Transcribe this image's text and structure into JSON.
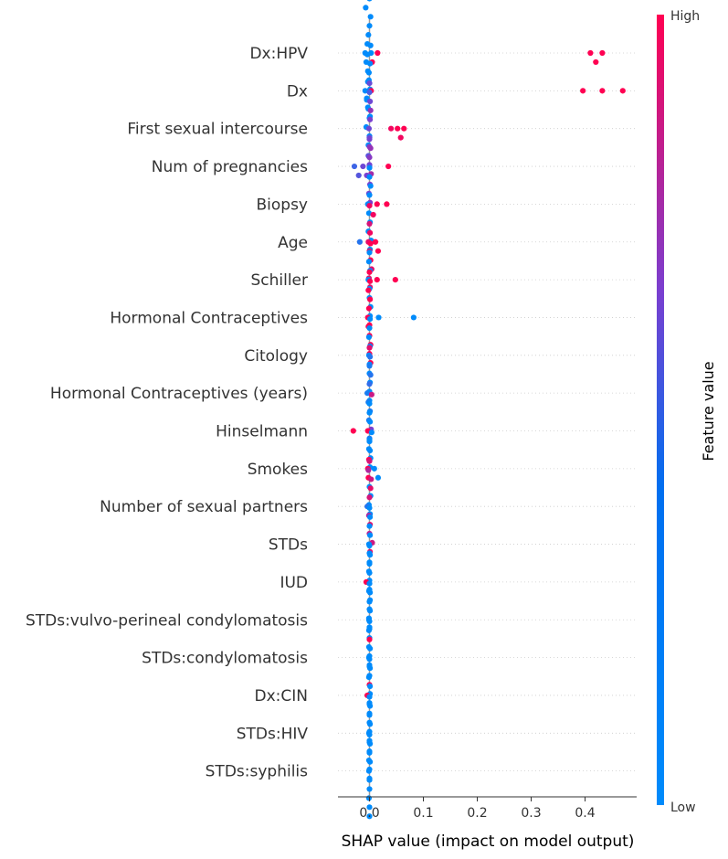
{
  "chart_data": {
    "type": "scatter",
    "subtype": "shap-beeswarm-summary",
    "title": "",
    "xlabel": "SHAP value (impact on model output)",
    "xlim": [
      -0.05,
      0.46
    ],
    "x_ticks": [
      0.0,
      0.1,
      0.2,
      0.3,
      0.4
    ],
    "x_tick_labels": [
      "0.0",
      "0.1",
      "0.2",
      "0.3",
      "0.4"
    ],
    "zero_line": true,
    "row_gridlines": "dotted",
    "colorbar": {
      "title": "Feature value",
      "high_label": "High",
      "low_label": "Low",
      "high_color": "#ff0052",
      "low_color": "#008bfb",
      "placement": "right"
    },
    "features": [
      {
        "name": "Dx:HPV",
        "points": [
          [
            -0.008,
            0.0
          ],
          [
            -0.006,
            0.0
          ],
          [
            -0.004,
            0.0
          ],
          [
            -0.003,
            0.0
          ],
          [
            -0.002,
            0.0
          ],
          [
            -0.001,
            0.0
          ],
          [
            0.0,
            0.0
          ],
          [
            0.001,
            0.0
          ],
          [
            0.002,
            0.0
          ],
          [
            -0.005,
            0.0
          ],
          [
            -0.007,
            0.0
          ],
          [
            -0.003,
            0.0
          ],
          [
            0.0,
            0.0
          ],
          [
            0.001,
            0.0
          ],
          [
            -0.002,
            0.0
          ],
          [
            0.003,
            0.0
          ],
          [
            0.005,
            1.0
          ],
          [
            0.015,
            1.0
          ],
          [
            0.41,
            1.0
          ],
          [
            0.42,
            1.0
          ],
          [
            0.432,
            1.0
          ]
        ]
      },
      {
        "name": "Dx",
        "points": [
          [
            -0.008,
            0.0
          ],
          [
            -0.005,
            0.0
          ],
          [
            -0.003,
            0.0
          ],
          [
            -0.002,
            0.0
          ],
          [
            -0.001,
            0.0
          ],
          [
            0.0,
            0.0
          ],
          [
            0.001,
            0.0
          ],
          [
            -0.006,
            0.0
          ],
          [
            -0.004,
            0.0
          ],
          [
            0.0,
            0.0
          ],
          [
            0.002,
            0.0
          ],
          [
            -0.002,
            0.0
          ],
          [
            0.003,
            1.0
          ],
          [
            0.396,
            1.0
          ],
          [
            0.432,
            1.0
          ],
          [
            0.47,
            1.0
          ]
        ]
      },
      {
        "name": "First sexual intercourse",
        "points": [
          [
            -0.001,
            0.45
          ],
          [
            0.0,
            0.4
          ],
          [
            0.001,
            0.5
          ],
          [
            0.0,
            0.55
          ],
          [
            0.002,
            0.6
          ],
          [
            -0.002,
            0.35
          ],
          [
            0.001,
            0.45
          ],
          [
            0.0,
            0.5
          ],
          [
            0.0,
            0.3
          ],
          [
            0.003,
            0.65
          ],
          [
            0.0,
            0.42
          ],
          [
            0.04,
            0.95
          ],
          [
            0.052,
            1.0
          ],
          [
            0.058,
            0.95
          ],
          [
            0.064,
            1.0
          ]
        ]
      },
      {
        "name": "Num of pregnancies",
        "points": [
          [
            -0.028,
            0.25
          ],
          [
            -0.02,
            0.35
          ],
          [
            -0.012,
            0.45
          ],
          [
            -0.005,
            0.5
          ],
          [
            0.0,
            0.4
          ],
          [
            0.0,
            0.55
          ],
          [
            0.001,
            0.5
          ],
          [
            0.002,
            0.6
          ],
          [
            -0.001,
            0.45
          ],
          [
            0.0,
            0.48
          ],
          [
            0.001,
            0.52
          ],
          [
            0.035,
            1.0
          ]
        ]
      },
      {
        "name": "Biopsy",
        "points": [
          [
            -0.003,
            0.0
          ],
          [
            -0.001,
            0.0
          ],
          [
            0.0,
            0.0
          ],
          [
            0.001,
            0.0
          ],
          [
            0.002,
            0.0
          ],
          [
            -0.002,
            0.0
          ],
          [
            0.0,
            0.0
          ],
          [
            0.003,
            0.0
          ],
          [
            0.0,
            0.0
          ],
          [
            0.001,
            0.0
          ],
          [
            0.014,
            1.0
          ],
          [
            0.032,
            1.0
          ]
        ]
      },
      {
        "name": "Age",
        "points": [
          [
            -0.018,
            0.15
          ],
          [
            -0.002,
            0.9
          ],
          [
            0.0,
            0.9
          ],
          [
            0.001,
            0.95
          ],
          [
            0.002,
            1.0
          ],
          [
            0.0,
            0.85
          ],
          [
            0.004,
            0.9
          ],
          [
            0.007,
            0.95
          ],
          [
            0.011,
            1.0
          ],
          [
            0.016,
            1.0
          ],
          [
            -0.001,
            0.9
          ],
          [
            0.0,
            0.95
          ],
          [
            0.001,
            0.9
          ]
        ]
      },
      {
        "name": "Schiller",
        "points": [
          [
            -0.002,
            0.0
          ],
          [
            0.0,
            0.0
          ],
          [
            0.001,
            0.0
          ],
          [
            0.0,
            0.0
          ],
          [
            -0.001,
            0.0
          ],
          [
            0.002,
            0.0
          ],
          [
            0.0,
            0.0
          ],
          [
            0.001,
            0.0
          ],
          [
            0.002,
            1.0
          ],
          [
            0.0,
            1.0
          ],
          [
            0.014,
            1.0
          ],
          [
            0.048,
            1.0
          ]
        ]
      },
      {
        "name": "Hormonal Contraceptives",
        "points": [
          [
            -0.003,
            1.0
          ],
          [
            -0.002,
            1.0
          ],
          [
            -0.001,
            1.0
          ],
          [
            0.0,
            1.0
          ],
          [
            0.001,
            1.0
          ],
          [
            0.002,
            1.0
          ],
          [
            -0.002,
            1.0
          ],
          [
            0.0,
            1.0
          ],
          [
            0.001,
            1.0
          ],
          [
            0.002,
            1.0
          ],
          [
            0.0,
            1.0
          ],
          [
            0.017,
            0.0
          ],
          [
            0.082,
            0.0
          ]
        ]
      },
      {
        "name": "Citology",
        "points": [
          [
            -0.001,
            0.0
          ],
          [
            0.0,
            0.0
          ],
          [
            0.001,
            0.0
          ],
          [
            0.0,
            0.0
          ],
          [
            -0.001,
            0.0
          ],
          [
            0.001,
            0.0
          ],
          [
            0.0,
            0.0
          ],
          [
            0.0,
            0.0
          ],
          [
            0.001,
            0.0
          ],
          [
            0.0,
            0.0
          ]
        ]
      },
      {
        "name": "Hormonal Contraceptives (years)",
        "points": [
          [
            -0.004,
            0.1
          ],
          [
            -0.002,
            0.1
          ],
          [
            0.0,
            0.2
          ],
          [
            0.001,
            0.1
          ],
          [
            0.002,
            0.15
          ],
          [
            -0.001,
            0.1
          ],
          [
            0.0,
            0.1
          ],
          [
            0.003,
            0.5
          ],
          [
            0.001,
            0.15
          ],
          [
            0.0,
            0.1
          ],
          [
            0.0,
            0.9
          ]
        ]
      },
      {
        "name": "Hinselmann",
        "points": [
          [
            -0.03,
            1.0
          ],
          [
            -0.003,
            1.0
          ],
          [
            0.0,
            0.0
          ],
          [
            0.001,
            0.0
          ],
          [
            -0.001,
            0.0
          ],
          [
            0.0,
            0.0
          ],
          [
            0.002,
            0.0
          ],
          [
            0.0,
            0.0
          ],
          [
            0.001,
            0.0
          ],
          [
            0.004,
            0.8
          ]
        ]
      },
      {
        "name": "Smokes",
        "points": [
          [
            -0.003,
            1.0
          ],
          [
            -0.002,
            1.0
          ],
          [
            -0.001,
            1.0
          ],
          [
            0.0,
            0.0
          ],
          [
            0.001,
            0.0
          ],
          [
            0.002,
            0.0
          ],
          [
            0.0,
            0.0
          ],
          [
            -0.001,
            0.0
          ],
          [
            0.004,
            0.0
          ],
          [
            0.009,
            0.0
          ],
          [
            0.016,
            0.0
          ],
          [
            0.001,
            0.0
          ]
        ]
      },
      {
        "name": "Number of sexual partners",
        "points": [
          [
            -0.004,
            0.15
          ],
          [
            -0.001,
            0.7
          ],
          [
            0.0,
            0.85
          ],
          [
            0.001,
            0.9
          ],
          [
            0.002,
            0.9
          ],
          [
            0.0,
            0.75
          ],
          [
            0.003,
            0.8
          ],
          [
            0.005,
            0.8
          ],
          [
            -0.002,
            0.7
          ],
          [
            0.001,
            0.9
          ],
          [
            0.0,
            0.85
          ]
        ]
      },
      {
        "name": "STDs",
        "points": [
          [
            -0.001,
            0.0
          ],
          [
            0.0,
            0.0
          ],
          [
            0.001,
            0.0
          ],
          [
            0.0,
            0.0
          ],
          [
            0.0,
            0.0
          ],
          [
            -0.001,
            0.0
          ],
          [
            0.001,
            0.0
          ],
          [
            0.0,
            0.0
          ],
          [
            0.0,
            0.0
          ],
          [
            0.0,
            0.0
          ]
        ]
      },
      {
        "name": "IUD",
        "points": [
          [
            -0.006,
            1.0
          ],
          [
            -0.001,
            0.0
          ],
          [
            0.0,
            0.0
          ],
          [
            0.001,
            0.0
          ],
          [
            0.0,
            0.0
          ],
          [
            0.0,
            0.0
          ],
          [
            0.001,
            0.0
          ],
          [
            -0.001,
            0.0
          ],
          [
            0.0,
            0.0
          ],
          [
            0.0,
            0.0
          ]
        ]
      },
      {
        "name": "STDs:vulvo-perineal condylomatosis",
        "points": [
          [
            -0.001,
            0.0
          ],
          [
            0.0,
            0.0
          ],
          [
            0.001,
            0.0
          ],
          [
            0.0,
            0.0
          ],
          [
            0.0,
            0.0
          ],
          [
            -0.001,
            0.0
          ],
          [
            0.001,
            0.0
          ],
          [
            0.0,
            0.0
          ],
          [
            0.0,
            0.0
          ],
          [
            0.0,
            0.0
          ]
        ]
      },
      {
        "name": "STDs:condylomatosis",
        "points": [
          [
            -0.001,
            0.0
          ],
          [
            0.0,
            0.0
          ],
          [
            0.001,
            0.0
          ],
          [
            0.0,
            0.0
          ],
          [
            0.0,
            1.0
          ],
          [
            0.0,
            1.0
          ],
          [
            -0.001,
            0.0
          ],
          [
            0.001,
            0.0
          ],
          [
            0.0,
            0.0
          ],
          [
            0.0,
            0.0
          ]
        ]
      },
      {
        "name": "Dx:CIN",
        "points": [
          [
            -0.004,
            1.0
          ],
          [
            0.0,
            0.0
          ],
          [
            0.001,
            0.0
          ],
          [
            0.0,
            0.0
          ],
          [
            -0.001,
            0.0
          ],
          [
            0.0,
            0.0
          ],
          [
            0.001,
            0.0
          ],
          [
            0.0,
            0.0
          ],
          [
            0.0,
            0.0
          ],
          [
            0.0,
            0.0
          ]
        ]
      },
      {
        "name": "STDs:HIV",
        "points": [
          [
            -0.001,
            0.0
          ],
          [
            0.0,
            0.0
          ],
          [
            0.001,
            0.0
          ],
          [
            0.0,
            0.0
          ],
          [
            0.0,
            0.0
          ],
          [
            -0.001,
            0.0
          ],
          [
            0.001,
            0.0
          ],
          [
            0.0,
            0.0
          ],
          [
            0.0,
            0.0
          ],
          [
            0.0,
            0.0
          ]
        ]
      },
      {
        "name": "STDs:syphilis",
        "points": [
          [
            -0.001,
            0.0
          ],
          [
            0.0,
            0.0
          ],
          [
            0.001,
            0.0
          ],
          [
            0.0,
            0.0
          ],
          [
            0.0,
            0.0
          ],
          [
            -0.001,
            0.0
          ],
          [
            0.001,
            0.0
          ],
          [
            0.0,
            0.0
          ],
          [
            0.0,
            0.0
          ],
          [
            0.0,
            0.0
          ]
        ]
      }
    ]
  }
}
